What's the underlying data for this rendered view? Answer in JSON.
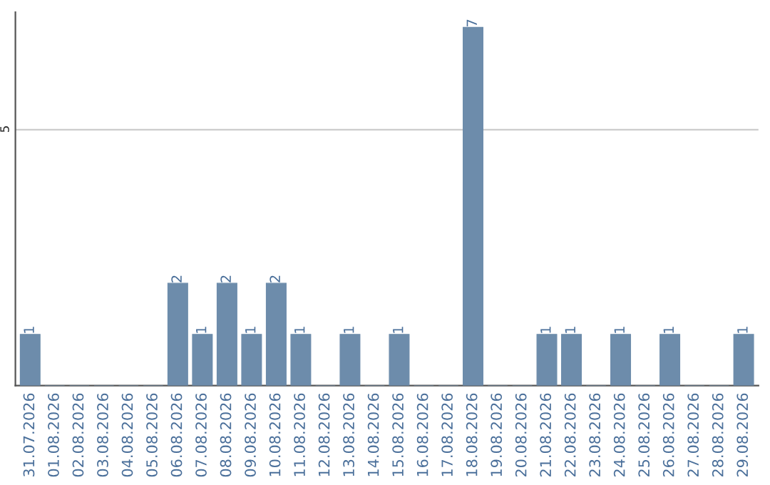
{
  "chart_data": {
    "type": "bar",
    "categories": [
      "31.07.2026",
      "01.08.2026",
      "02.08.2026",
      "03.08.2026",
      "04.08.2026",
      "05.08.2026",
      "06.08.2026",
      "07.08.2026",
      "08.08.2026",
      "09.08.2026",
      "10.08.2026",
      "11.08.2026",
      "12.08.2026",
      "13.08.2026",
      "14.08.2026",
      "15.08.2026",
      "16.08.2026",
      "17.08.2026",
      "18.08.2026",
      "19.08.2026",
      "20.08.2026",
      "21.08.2026",
      "22.08.2026",
      "23.08.2026",
      "24.08.2026",
      "25.08.2026",
      "26.08.2026",
      "27.08.2026",
      "28.08.2026",
      "29.08.2026"
    ],
    "values": [
      1,
      0,
      0,
      0,
      0,
      0,
      2,
      1,
      2,
      1,
      2,
      1,
      0,
      1,
      0,
      1,
      0,
      0,
      7,
      0,
      0,
      1,
      1,
      0,
      1,
      0,
      1,
      0,
      0,
      1
    ],
    "value_labels": [
      "1",
      null,
      null,
      null,
      null,
      null,
      "2",
      "1",
      "2",
      "1",
      "2",
      "1",
      null,
      "1",
      null,
      "1",
      null,
      null,
      "7",
      null,
      null,
      "1",
      "1",
      null,
      "1",
      null,
      "1",
      null,
      null,
      "1"
    ],
    "color": "#6d8cab",
    "ylim": [
      0,
      7.3
    ],
    "yticks": [
      5
    ],
    "grid": "y"
  }
}
